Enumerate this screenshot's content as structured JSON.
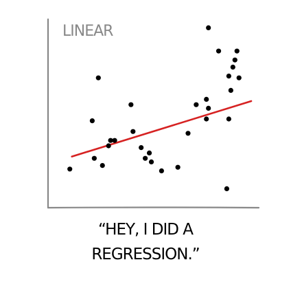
{
  "chart_data": {
    "type": "scatter",
    "title": "LINEAR",
    "xlabel": "",
    "ylabel": "",
    "xlim": [
      0,
      100
    ],
    "ylim": [
      0,
      100
    ],
    "grid": false,
    "points": [
      {
        "x": 9,
        "y": 17
      },
      {
        "x": 20,
        "y": 44
      },
      {
        "x": 21,
        "y": 23
      },
      {
        "x": 23,
        "y": 68
      },
      {
        "x": 25,
        "y": 19
      },
      {
        "x": 28,
        "y": 30
      },
      {
        "x": 29,
        "y": 33
      },
      {
        "x": 31,
        "y": 33
      },
      {
        "x": 39,
        "y": 53
      },
      {
        "x": 40,
        "y": 38
      },
      {
        "x": 44,
        "y": 29
      },
      {
        "x": 46,
        "y": 23
      },
      {
        "x": 48,
        "y": 26
      },
      {
        "x": 49,
        "y": 21
      },
      {
        "x": 54,
        "y": 16
      },
      {
        "x": 62,
        "y": 18
      },
      {
        "x": 67,
        "y": 37
      },
      {
        "x": 71,
        "y": 53
      },
      {
        "x": 76,
        "y": 56
      },
      {
        "x": 76,
        "y": 45
      },
      {
        "x": 77,
        "y": 51
      },
      {
        "x": 77,
        "y": 96
      },
      {
        "x": 82,
        "y": 83
      },
      {
        "x": 86,
        "y": 6
      },
      {
        "x": 87,
        "y": 69
      },
      {
        "x": 87,
        "y": 45
      },
      {
        "x": 88,
        "y": 61
      },
      {
        "x": 89,
        "y": 74
      },
      {
        "x": 90,
        "y": 78
      },
      {
        "x": 91,
        "y": 83
      },
      {
        "x": 92,
        "y": 68
      }
    ],
    "regression": {
      "x": [
        10,
        98
      ],
      "y": [
        24,
        55
      ]
    },
    "colors": {
      "points": "#000000",
      "regression": "#d62222",
      "axis": "#888888",
      "title": "#888888"
    }
  },
  "caption": {
    "line1": "“HEY, I DID A",
    "line2": "REGRESSION.”"
  }
}
